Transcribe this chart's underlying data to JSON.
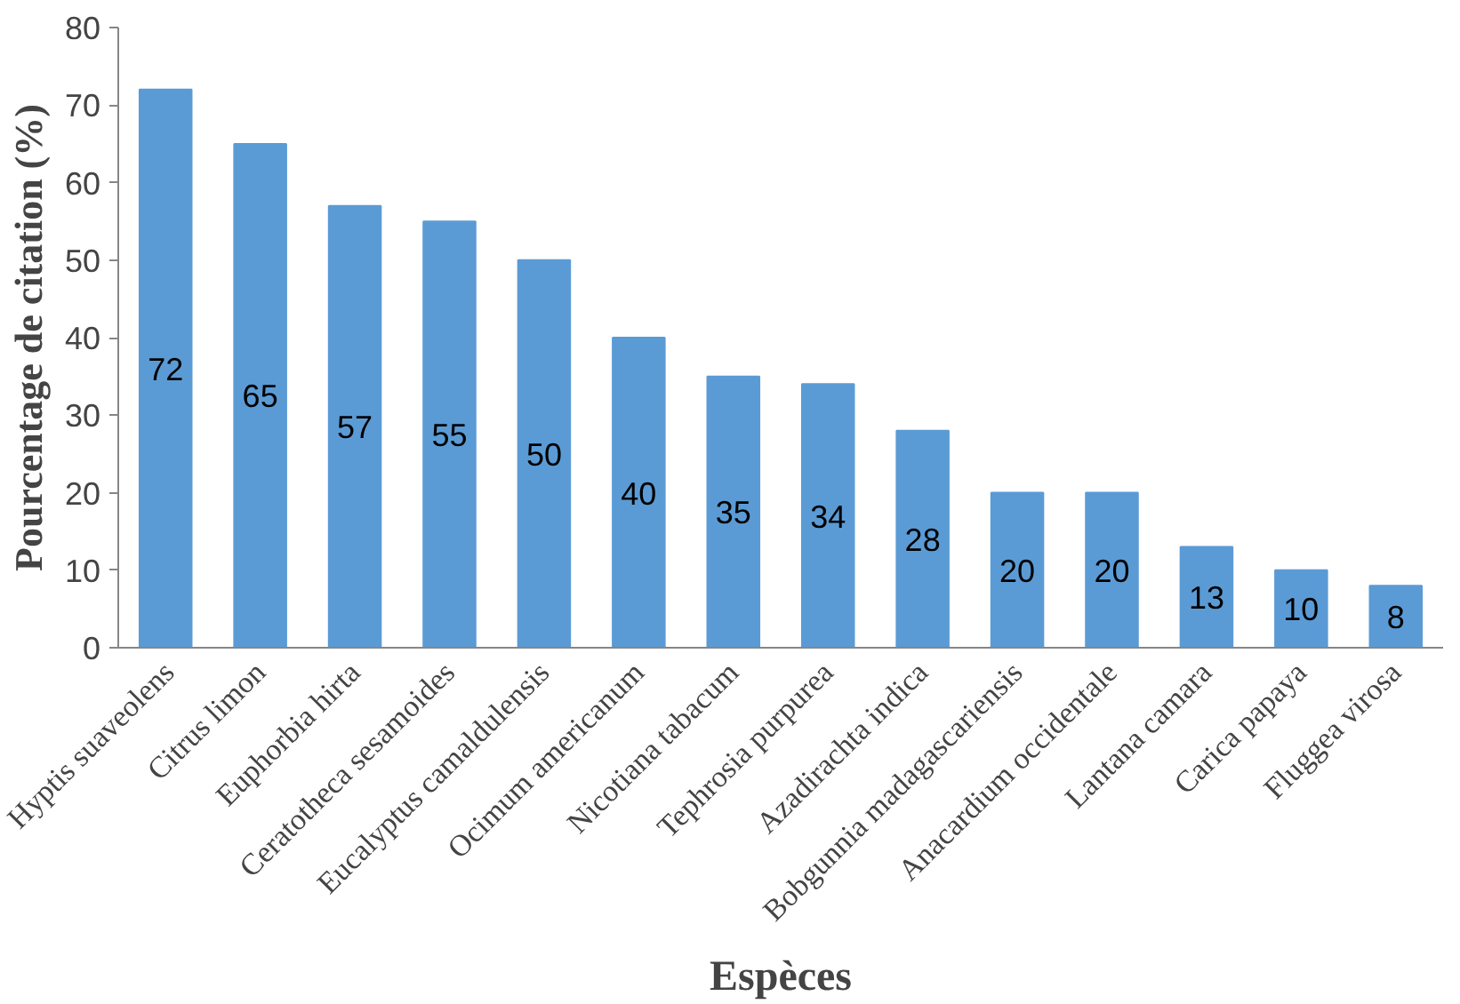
{
  "chart_data": {
    "type": "bar",
    "xlabel": "Espèces",
    "ylabel": "Pourcentage de citation (%)",
    "categories": [
      "Hyptis suaveolens",
      "Citrus limon",
      "Euphorbia hirta",
      "Ceratotheca sesamoides",
      "Eucalyptus camaldulensis",
      "Ocimum americanum",
      "Nicotiana tabacum",
      "Tephrosia purpurea",
      "Azadirachta indica",
      "Bobgunnia madagascariensis",
      "Anacardium occidentale",
      "Lantana camara",
      "Carica papaya",
      "Fluggea virosa"
    ],
    "values": [
      72,
      65,
      57,
      55,
      50,
      40,
      35,
      34,
      28,
      20,
      20,
      13,
      10,
      8
    ],
    "color": "#5b9bd5",
    "ylim": [
      0,
      80
    ],
    "yticks": [
      0,
      10,
      20,
      30,
      40,
      50,
      60,
      70,
      80
    ],
    "grid": false,
    "data_labels": true
  }
}
